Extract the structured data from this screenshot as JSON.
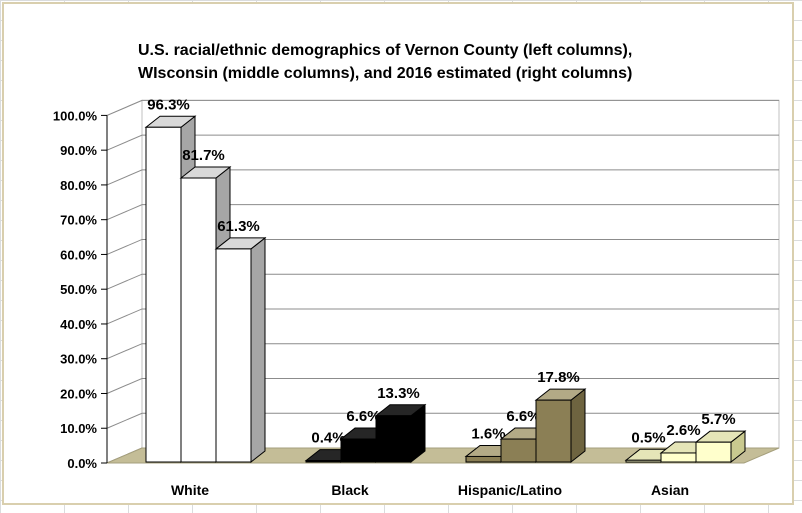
{
  "chart_data": {
    "type": "bar",
    "title_line1": "U.S. racial/ethnic demographics of Vernon County (left columns),",
    "title_line2": "WIsconsin (middle columns), and 2016 estimated (right columns)",
    "categories": [
      "White",
      "Black",
      "Hispanic/Latino",
      "Asian"
    ],
    "series": [
      {
        "values": [
          96.3,
          0.4,
          1.6,
          0.5
        ]
      },
      {
        "values": [
          81.7,
          6.6,
          6.6,
          2.6
        ]
      },
      {
        "values": [
          61.3,
          13.3,
          17.8,
          5.7
        ]
      }
    ],
    "value_labels": [
      [
        "96.3%",
        "81.7%",
        "61.3%"
      ],
      [
        "0.4%",
        "6.6%",
        "13.3%"
      ],
      [
        "1.6%",
        "6.6%",
        "17.8%"
      ],
      [
        "0.5%",
        "2.6%",
        "5.7%"
      ]
    ],
    "y_ticks": [
      "0.0%",
      "10.0%",
      "20.0%",
      "30.0%",
      "40.0%",
      "50.0%",
      "60.0%",
      "70.0%",
      "80.0%",
      "90.0%",
      "100.0%"
    ],
    "ylim": [
      0,
      100
    ],
    "grid": true,
    "legend": "none",
    "xlabel": "",
    "ylabel": "",
    "category_colors": {
      "White": {
        "front": "#ffffff",
        "top": "#d9d9d9",
        "side": "#a6a6a6"
      },
      "Black": {
        "front": "#000000",
        "top": "#262626",
        "side": "#000000"
      },
      "Hispanic/Latino": {
        "front": "#8b7f55",
        "top": "#b3aa86",
        "side": "#6e6440"
      },
      "Asian": {
        "front": "#ffffcc",
        "top": "#e5e5b8",
        "side": "#c9c98f"
      }
    },
    "floor_color": "#c4bd97",
    "wall_color": "#ffffff",
    "frame_color": "#d9cfae"
  }
}
